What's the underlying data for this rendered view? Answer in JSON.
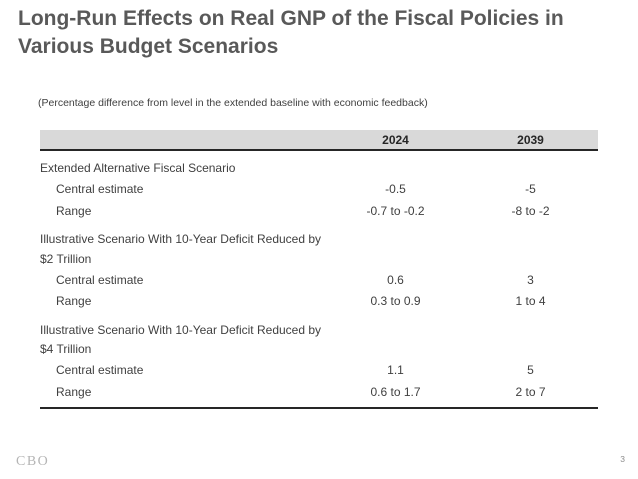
{
  "colors": {
    "title_text": "#595959",
    "body_text": "#404040",
    "table_header_bg": "#d9d9d9",
    "table_border": "#262626",
    "footer_logo": "#b5b5b5",
    "page_number": "#8c8c8c"
  },
  "slide": {
    "title_line1": "Long-Run Effects on Real GNP of the Fiscal Policies in",
    "title_line2": "Various Budget Scenarios",
    "subtitle": "(Percentage difference from level in the extended baseline with economic feedback)",
    "footer_logo": "CBO",
    "page_number": "3"
  },
  "table": {
    "columns": [
      "2024",
      "2039"
    ],
    "groups": [
      {
        "header": "Extended Alternative Fiscal Scenario",
        "rows": [
          {
            "label": "Central estimate",
            "y2024": "-0.5",
            "y2039": "-5"
          },
          {
            "label": "Range",
            "y2024": "-0.7 to -0.2",
            "y2039": "-8 to -2"
          }
        ]
      },
      {
        "header": "Illustrative Scenario With 10-Year Deficit Reduced by $2 Trillion",
        "rows": [
          {
            "label": "Central estimate",
            "y2024": "0.6",
            "y2039": "3"
          },
          {
            "label": "Range",
            "y2024": "0.3 to 0.9",
            "y2039": "1 to 4"
          }
        ]
      },
      {
        "header": "Illustrative Scenario With 10-Year Deficit Reduced by $4 Trillion",
        "rows": [
          {
            "label": "Central estimate",
            "y2024": "1.1",
            "y2039": "5"
          },
          {
            "label": "Range",
            "y2024": "0.6 to 1.7",
            "y2039": "2 to 7"
          }
        ]
      }
    ]
  }
}
